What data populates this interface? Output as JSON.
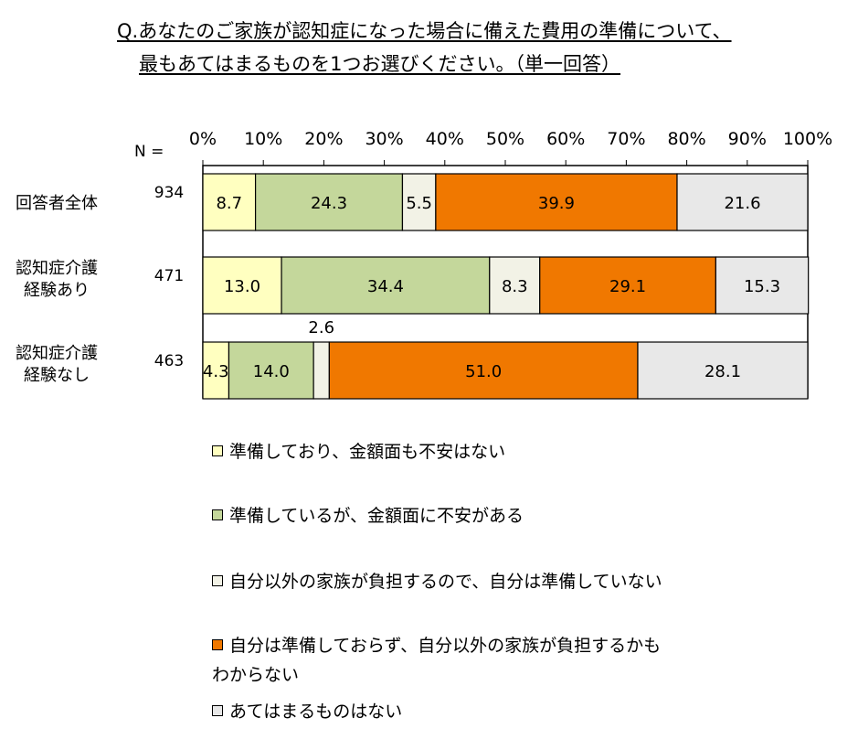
{
  "title": {
    "line1": "Q.あなたのご家族が認知症になった場合に備えた費用の準備について、",
    "line2": "最もあてはまるものを1つお選びください。（単一回答）"
  },
  "chart_data": {
    "type": "bar",
    "orientation": "horizontal-stacked-100",
    "n_label": "N =",
    "xlim": [
      0,
      100
    ],
    "x_ticks": [
      "0%",
      "10%",
      "20%",
      "30%",
      "40%",
      "50%",
      "60%",
      "70%",
      "80%",
      "90%",
      "100%"
    ],
    "categories": [
      {
        "label": "回答者全体",
        "n": "934"
      },
      {
        "label": "認知症介護\n経験あり",
        "n": "471"
      },
      {
        "label": "認知症介護\n経験なし",
        "n": "463"
      }
    ],
    "series": [
      {
        "name": "準備しており、金額面も不安はない",
        "color": "#ffffc0",
        "values": [
          8.7,
          13.0,
          4.3
        ],
        "labels": [
          "8.7",
          "13.0",
          "4.3"
        ]
      },
      {
        "name": "準備しているが、金額面に不安がある",
        "color": "#c4d79b",
        "values": [
          24.3,
          34.4,
          14.0
        ],
        "labels": [
          "24.3",
          "34.4",
          "14.0"
        ]
      },
      {
        "name": "自分以外の家族が負担するので、自分は準備していない",
        "color": "#f2f2e6",
        "values": [
          5.5,
          8.3,
          2.6
        ],
        "labels": [
          "5.5",
          "8.3",
          "2.6"
        ]
      },
      {
        "name": "自分は準備しておらず、自分以外の家族が負担するかも\nわからない",
        "color": "#f07800",
        "values": [
          39.9,
          29.1,
          51.0
        ],
        "labels": [
          "39.9",
          "29.1",
          "51.0"
        ]
      },
      {
        "name": "あてはまるものはない",
        "color": "#e8e8e8",
        "values": [
          21.6,
          15.3,
          28.1
        ],
        "labels": [
          "21.6",
          "15.3",
          "28.1"
        ]
      }
    ]
  }
}
